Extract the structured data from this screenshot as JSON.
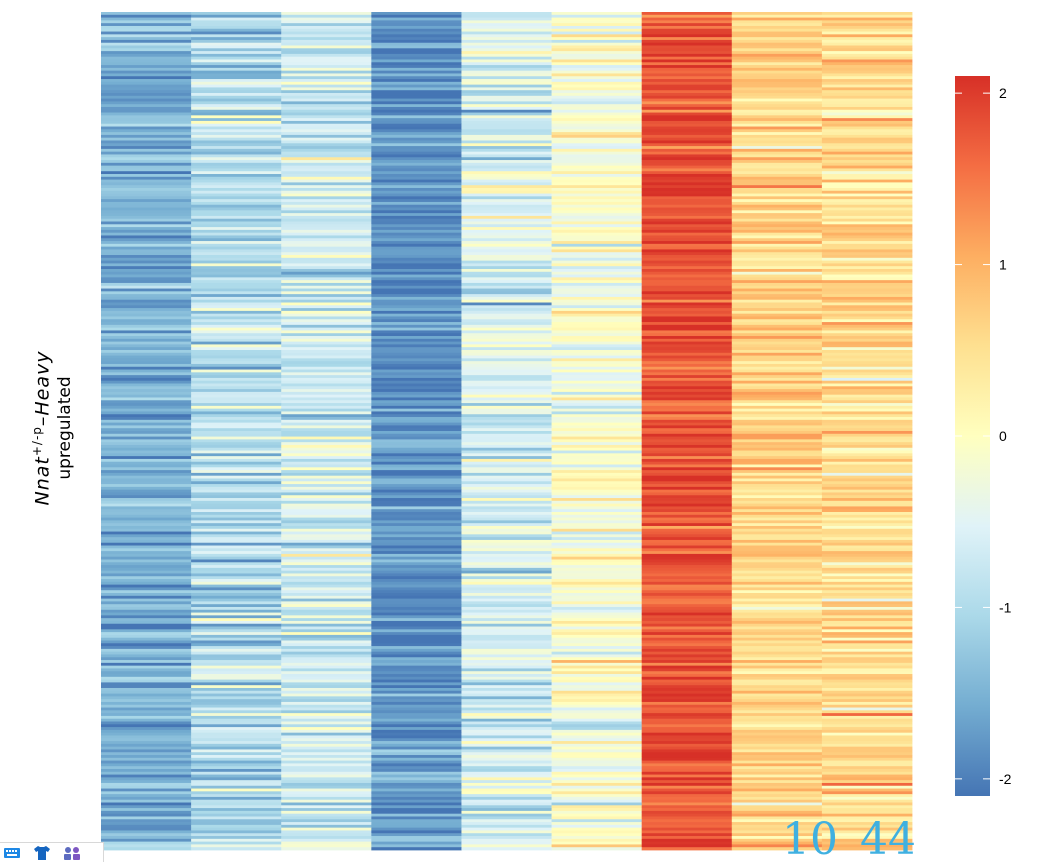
{
  "chart_data": {
    "type": "heatmap",
    "n_columns": 9,
    "n_rows": 300,
    "column_means": [
      -1.45,
      -0.95,
      -0.7,
      -1.75,
      -0.6,
      -0.15,
      1.7,
      0.6,
      0.5
    ],
    "column_spread": [
      0.25,
      0.35,
      0.35,
      0.25,
      0.35,
      0.3,
      0.2,
      0.25,
      0.3
    ],
    "color_scale": {
      "low": "#4575B4",
      "mid": "#FFFFBF",
      "high": "#D73027",
      "stops": [
        {
          "value": -2,
          "color": "#4575B4"
        },
        {
          "value": -1.5,
          "color": "#74ADD1"
        },
        {
          "value": -1,
          "color": "#ABD9E9"
        },
        {
          "value": -0.5,
          "color": "#E0F3F8"
        },
        {
          "value": 0,
          "color": "#FFFFBF"
        },
        {
          "value": 0.5,
          "color": "#FEE090"
        },
        {
          "value": 1,
          "color": "#FDAE61"
        },
        {
          "value": 1.5,
          "color": "#F46D43"
        },
        {
          "value": 2,
          "color": "#D73027"
        }
      ],
      "range": [
        -2.1,
        2.1
      ]
    },
    "legend": {
      "ticks": [
        2,
        1,
        0,
        -1,
        -2
      ],
      "tick_labels": [
        "2",
        "1",
        "0",
        "-1",
        "-2"
      ]
    },
    "ylabel_line1": "Nnat",
    "ylabel_superscript": "+/-p",
    "ylabel_suffix": "–Heavy",
    "ylabel_line2": "upregulated"
  },
  "overlay_numbers": [
    "10",
    "44"
  ],
  "taskbar": {
    "icons": [
      "keyboard-icon",
      "shirt-icon",
      "people-icon"
    ]
  }
}
